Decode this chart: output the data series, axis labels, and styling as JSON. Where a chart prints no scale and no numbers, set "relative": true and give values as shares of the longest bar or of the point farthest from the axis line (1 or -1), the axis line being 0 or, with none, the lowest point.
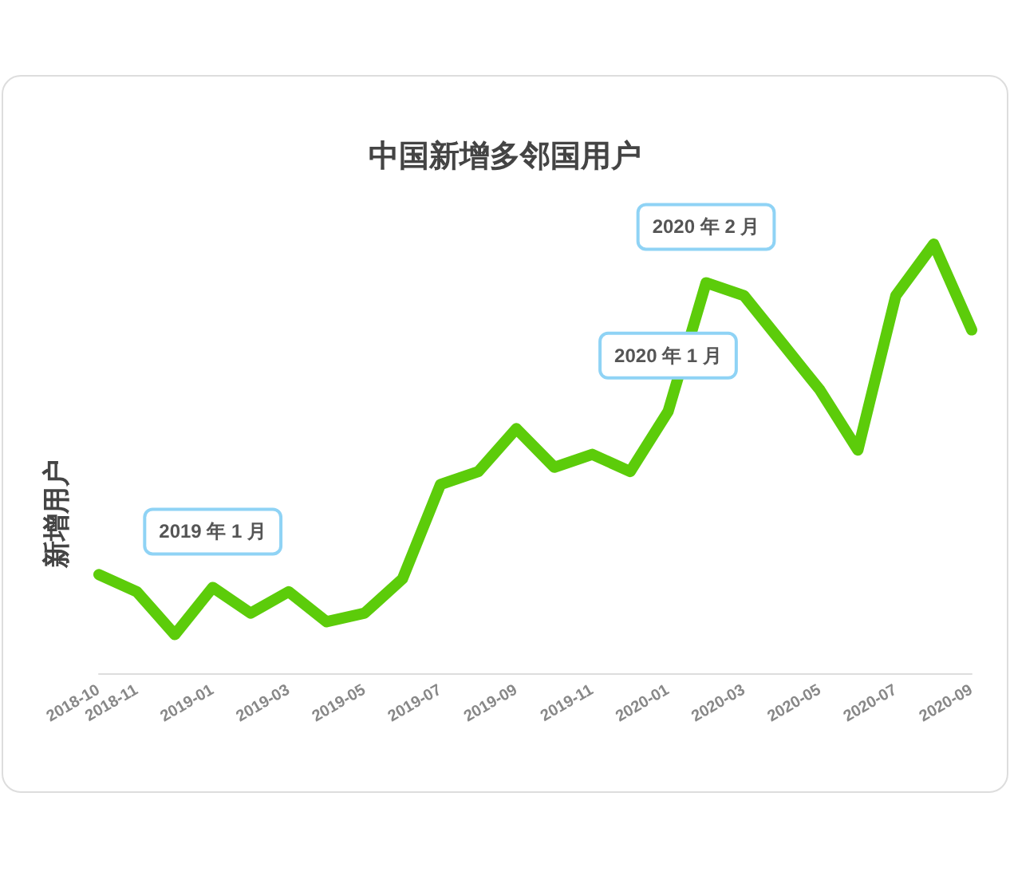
{
  "chart_data": {
    "type": "line",
    "title": "中国新增多邻国用户",
    "ylabel": "新增用户",
    "relative": true,
    "categories": [
      "2018-10",
      "2018-11",
      null,
      "2019-01",
      null,
      "2019-03",
      null,
      "2019-05",
      null,
      "2019-07",
      null,
      "2019-09",
      null,
      "2019-11",
      null,
      "2020-01",
      null,
      "2020-03",
      null,
      "2020-05",
      null,
      "2020-07",
      null,
      "2020-09"
    ],
    "series": [
      {
        "color": "#5ccc0a",
        "values": [
          0.23,
          0.19,
          0.09,
          0.2,
          0.14,
          0.19,
          0.12,
          0.14,
          0.22,
          0.44,
          0.47,
          0.57,
          0.48,
          0.51,
          0.47,
          0.61,
          0.91,
          0.88,
          0.77,
          0.66,
          0.52,
          0.88,
          1,
          0.8
        ]
      }
    ],
    "annotations": [
      {
        "text": "2019 年 1 月",
        "x": "2019-01",
        "y": 0.2
      },
      {
        "text": "2020 年 1 月",
        "x": "2020-01",
        "y": 0.61
      },
      {
        "text": "2020 年 2 月",
        "y": 0.91
      }
    ],
    "grid": false,
    "line_style": "solid"
  }
}
